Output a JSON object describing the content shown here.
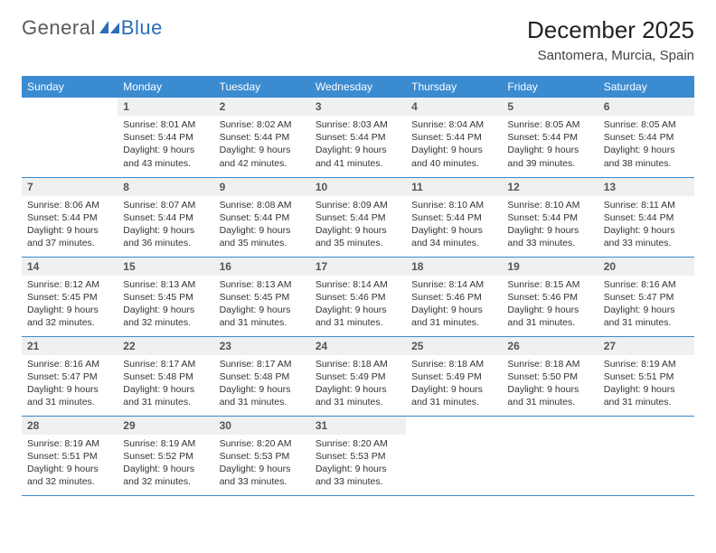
{
  "logo": {
    "text1": "General",
    "text2": "Blue"
  },
  "header": {
    "month_title": "December 2025",
    "location": "Santomera, Murcia, Spain"
  },
  "colors": {
    "header_bg": "#3b8bd1",
    "header_fg": "#ffffff",
    "daynum_bg": "#eef0f1",
    "rule": "#3b8bd1",
    "logo_blue": "#2a6db8"
  },
  "weekdays": [
    "Sunday",
    "Monday",
    "Tuesday",
    "Wednesday",
    "Thursday",
    "Friday",
    "Saturday"
  ],
  "weeks": [
    [
      {
        "n": "",
        "sr": "",
        "ss": "",
        "dl": ""
      },
      {
        "n": "1",
        "sr": "Sunrise: 8:01 AM",
        "ss": "Sunset: 5:44 PM",
        "dl": "Daylight: 9 hours and 43 minutes."
      },
      {
        "n": "2",
        "sr": "Sunrise: 8:02 AM",
        "ss": "Sunset: 5:44 PM",
        "dl": "Daylight: 9 hours and 42 minutes."
      },
      {
        "n": "3",
        "sr": "Sunrise: 8:03 AM",
        "ss": "Sunset: 5:44 PM",
        "dl": "Daylight: 9 hours and 41 minutes."
      },
      {
        "n": "4",
        "sr": "Sunrise: 8:04 AM",
        "ss": "Sunset: 5:44 PM",
        "dl": "Daylight: 9 hours and 40 minutes."
      },
      {
        "n": "5",
        "sr": "Sunrise: 8:05 AM",
        "ss": "Sunset: 5:44 PM",
        "dl": "Daylight: 9 hours and 39 minutes."
      },
      {
        "n": "6",
        "sr": "Sunrise: 8:05 AM",
        "ss": "Sunset: 5:44 PM",
        "dl": "Daylight: 9 hours and 38 minutes."
      }
    ],
    [
      {
        "n": "7",
        "sr": "Sunrise: 8:06 AM",
        "ss": "Sunset: 5:44 PM",
        "dl": "Daylight: 9 hours and 37 minutes."
      },
      {
        "n": "8",
        "sr": "Sunrise: 8:07 AM",
        "ss": "Sunset: 5:44 PM",
        "dl": "Daylight: 9 hours and 36 minutes."
      },
      {
        "n": "9",
        "sr": "Sunrise: 8:08 AM",
        "ss": "Sunset: 5:44 PM",
        "dl": "Daylight: 9 hours and 35 minutes."
      },
      {
        "n": "10",
        "sr": "Sunrise: 8:09 AM",
        "ss": "Sunset: 5:44 PM",
        "dl": "Daylight: 9 hours and 35 minutes."
      },
      {
        "n": "11",
        "sr": "Sunrise: 8:10 AM",
        "ss": "Sunset: 5:44 PM",
        "dl": "Daylight: 9 hours and 34 minutes."
      },
      {
        "n": "12",
        "sr": "Sunrise: 8:10 AM",
        "ss": "Sunset: 5:44 PM",
        "dl": "Daylight: 9 hours and 33 minutes."
      },
      {
        "n": "13",
        "sr": "Sunrise: 8:11 AM",
        "ss": "Sunset: 5:44 PM",
        "dl": "Daylight: 9 hours and 33 minutes."
      }
    ],
    [
      {
        "n": "14",
        "sr": "Sunrise: 8:12 AM",
        "ss": "Sunset: 5:45 PM",
        "dl": "Daylight: 9 hours and 32 minutes."
      },
      {
        "n": "15",
        "sr": "Sunrise: 8:13 AM",
        "ss": "Sunset: 5:45 PM",
        "dl": "Daylight: 9 hours and 32 minutes."
      },
      {
        "n": "16",
        "sr": "Sunrise: 8:13 AM",
        "ss": "Sunset: 5:45 PM",
        "dl": "Daylight: 9 hours and 31 minutes."
      },
      {
        "n": "17",
        "sr": "Sunrise: 8:14 AM",
        "ss": "Sunset: 5:46 PM",
        "dl": "Daylight: 9 hours and 31 minutes."
      },
      {
        "n": "18",
        "sr": "Sunrise: 8:14 AM",
        "ss": "Sunset: 5:46 PM",
        "dl": "Daylight: 9 hours and 31 minutes."
      },
      {
        "n": "19",
        "sr": "Sunrise: 8:15 AM",
        "ss": "Sunset: 5:46 PM",
        "dl": "Daylight: 9 hours and 31 minutes."
      },
      {
        "n": "20",
        "sr": "Sunrise: 8:16 AM",
        "ss": "Sunset: 5:47 PM",
        "dl": "Daylight: 9 hours and 31 minutes."
      }
    ],
    [
      {
        "n": "21",
        "sr": "Sunrise: 8:16 AM",
        "ss": "Sunset: 5:47 PM",
        "dl": "Daylight: 9 hours and 31 minutes."
      },
      {
        "n": "22",
        "sr": "Sunrise: 8:17 AM",
        "ss": "Sunset: 5:48 PM",
        "dl": "Daylight: 9 hours and 31 minutes."
      },
      {
        "n": "23",
        "sr": "Sunrise: 8:17 AM",
        "ss": "Sunset: 5:48 PM",
        "dl": "Daylight: 9 hours and 31 minutes."
      },
      {
        "n": "24",
        "sr": "Sunrise: 8:18 AM",
        "ss": "Sunset: 5:49 PM",
        "dl": "Daylight: 9 hours and 31 minutes."
      },
      {
        "n": "25",
        "sr": "Sunrise: 8:18 AM",
        "ss": "Sunset: 5:49 PM",
        "dl": "Daylight: 9 hours and 31 minutes."
      },
      {
        "n": "26",
        "sr": "Sunrise: 8:18 AM",
        "ss": "Sunset: 5:50 PM",
        "dl": "Daylight: 9 hours and 31 minutes."
      },
      {
        "n": "27",
        "sr": "Sunrise: 8:19 AM",
        "ss": "Sunset: 5:51 PM",
        "dl": "Daylight: 9 hours and 31 minutes."
      }
    ],
    [
      {
        "n": "28",
        "sr": "Sunrise: 8:19 AM",
        "ss": "Sunset: 5:51 PM",
        "dl": "Daylight: 9 hours and 32 minutes."
      },
      {
        "n": "29",
        "sr": "Sunrise: 8:19 AM",
        "ss": "Sunset: 5:52 PM",
        "dl": "Daylight: 9 hours and 32 minutes."
      },
      {
        "n": "30",
        "sr": "Sunrise: 8:20 AM",
        "ss": "Sunset: 5:53 PM",
        "dl": "Daylight: 9 hours and 33 minutes."
      },
      {
        "n": "31",
        "sr": "Sunrise: 8:20 AM",
        "ss": "Sunset: 5:53 PM",
        "dl": "Daylight: 9 hours and 33 minutes."
      },
      {
        "n": "",
        "sr": "",
        "ss": "",
        "dl": ""
      },
      {
        "n": "",
        "sr": "",
        "ss": "",
        "dl": ""
      },
      {
        "n": "",
        "sr": "",
        "ss": "",
        "dl": ""
      }
    ]
  ]
}
